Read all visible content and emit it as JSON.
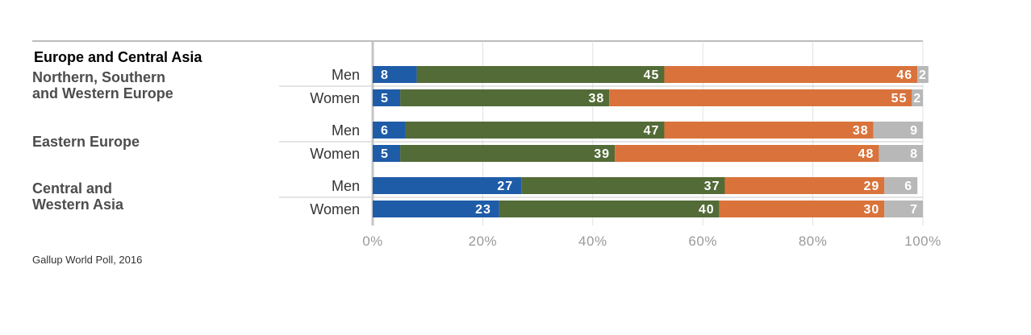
{
  "chart_data": {
    "type": "bar",
    "orientation": "horizontal-stacked",
    "region_title": "Europe and Central Asia",
    "groups": [
      {
        "label_lines": [
          "Northern, Southern",
          "and Western Europe"
        ],
        "rows": [
          {
            "label": "Men",
            "values": [
              8,
              45,
              46,
              2
            ]
          },
          {
            "label": "Women",
            "values": [
              5,
              38,
              55,
              2
            ]
          }
        ]
      },
      {
        "label_lines": [
          "Eastern Europe"
        ],
        "rows": [
          {
            "label": "Men",
            "values": [
              6,
              47,
              38,
              9
            ]
          },
          {
            "label": "Women",
            "values": [
              5,
              39,
              48,
              8
            ]
          }
        ]
      },
      {
        "label_lines": [
          "Central and",
          "Western Asia"
        ],
        "rows": [
          {
            "label": "Men",
            "values": [
              27,
              37,
              29,
              6
            ]
          },
          {
            "label": "Women",
            "values": [
              23,
              40,
              30,
              7
            ]
          }
        ]
      }
    ],
    "series_colors": [
      "#1f5ca8",
      "#536b37",
      "#d9733b",
      "#b8b8b8"
    ],
    "xlim": [
      0,
      100
    ],
    "xticks": [
      "0%",
      "20%",
      "40%",
      "60%",
      "80%",
      "100%"
    ],
    "grid": true
  },
  "source_note": "Gallup World Poll, 2016"
}
